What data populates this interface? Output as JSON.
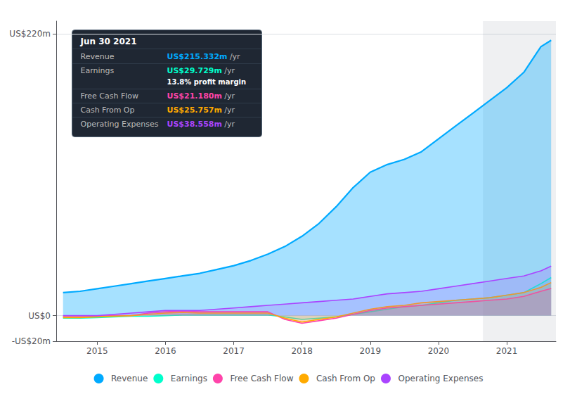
{
  "chart_data": {
    "type": "area",
    "x": [
      2014.5,
      2014.75,
      2015.0,
      2015.25,
      2015.5,
      2015.75,
      2016.0,
      2016.25,
      2016.5,
      2016.75,
      2017.0,
      2017.25,
      2017.5,
      2017.75,
      2018.0,
      2018.25,
      2018.5,
      2018.75,
      2019.0,
      2019.25,
      2019.5,
      2019.75,
      2020.0,
      2020.25,
      2020.5,
      2020.75,
      2021.0,
      2021.25,
      2021.5,
      2021.65
    ],
    "xlim": [
      2014.4,
      2021.72
    ],
    "xticks": [
      2015,
      2016,
      2017,
      2018,
      2019,
      2020,
      2021
    ],
    "ylim": [
      -20,
      230
    ],
    "yticks": [
      {
        "value": -20,
        "label": "-US$20m"
      },
      {
        "value": 0,
        "label": "US$0"
      },
      {
        "value": 220,
        "label": "US$220m"
      }
    ],
    "grid": true,
    "legend": "bottom",
    "shaded_x": [
      2020.65,
      2021.72
    ],
    "series": [
      {
        "name": "Revenue",
        "color": "#00aaff",
        "values": [
          18,
          19,
          21,
          23,
          25,
          27,
          29,
          31,
          33,
          36,
          39,
          43,
          48,
          54,
          62,
          72,
          85,
          100,
          112,
          118,
          122,
          128,
          138,
          148,
          158,
          168,
          178,
          190,
          210,
          215
        ]
      },
      {
        "name": "Earnings",
        "color": "#00ffcc",
        "values": [
          -2,
          -2,
          -1.5,
          -1,
          -0.5,
          -0.5,
          0,
          0.5,
          0.5,
          0.5,
          0.5,
          0.5,
          0.5,
          -1,
          -3,
          -2,
          -1,
          1,
          3,
          5,
          7,
          8,
          10,
          12,
          13,
          14,
          16,
          18,
          25,
          29.7
        ]
      },
      {
        "name": "Free Cash Flow",
        "color": "#ff44aa",
        "values": [
          -1,
          -1,
          -0.5,
          0,
          0,
          2,
          3,
          3.5,
          3,
          3,
          3,
          3,
          3,
          -3,
          -6,
          -4,
          -2,
          1,
          4,
          6,
          7,
          8,
          9,
          10,
          11,
          12,
          13,
          15,
          19,
          21.2
        ]
      },
      {
        "name": "Cash From Op",
        "color": "#ffaa00",
        "values": [
          -1.5,
          -1.5,
          -1,
          -0.5,
          0,
          1,
          2,
          2.5,
          2,
          2,
          2,
          2,
          2,
          -2,
          -5,
          -3,
          -1,
          2,
          5,
          7,
          8,
          10,
          11,
          12,
          13,
          14,
          16,
          18,
          22,
          25.8
        ]
      },
      {
        "name": "Operating Expenses",
        "color": "#aa44ff",
        "values": [
          0,
          0,
          0,
          1,
          2,
          3,
          4,
          4,
          4,
          5,
          6,
          7,
          8,
          9,
          10,
          11,
          12,
          13,
          15,
          17,
          18,
          19,
          21,
          23,
          25,
          27,
          29,
          31,
          35,
          38.6
        ]
      }
    ],
    "info_box": {
      "title": "Jun 30 2021",
      "rows": [
        {
          "label": "Revenue",
          "value": "US$215.332m",
          "suffix": "/yr",
          "color": "#00aaff"
        },
        {
          "label": "Earnings",
          "value": "US$29.729m",
          "suffix": "/yr",
          "color": "#00ffcc",
          "note": "13.8% profit margin"
        },
        {
          "label": "Free Cash Flow",
          "value": "US$21.180m",
          "suffix": "/yr",
          "color": "#ff44aa"
        },
        {
          "label": "Cash From Op",
          "value": "US$25.757m",
          "suffix": "/yr",
          "color": "#ffaa00"
        },
        {
          "label": "Operating Expenses",
          "value": "US$38.558m",
          "suffix": "/yr",
          "color": "#aa44ff"
        }
      ]
    }
  }
}
